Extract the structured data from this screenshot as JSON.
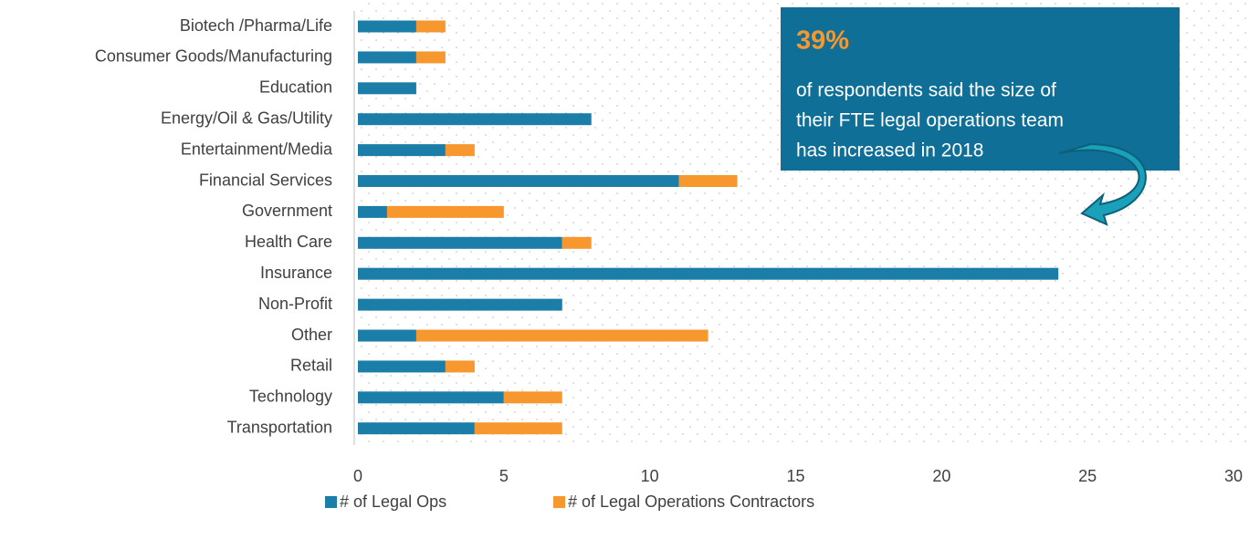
{
  "chart_data": {
    "type": "stacked_barh",
    "categories": [
      "Biotech /Pharma/Life",
      "Consumer Goods/Manufacturing",
      "Education",
      "Energy/Oil & Gas/Utility",
      "Entertainment/Media",
      "Financial Services",
      "Government",
      "Health Care",
      "Insurance",
      "Non-Profit",
      "Other",
      "Retail",
      "Technology",
      "Transportation"
    ],
    "series": [
      {
        "name": "# of Legal Ops",
        "color": "#1b7ea9",
        "values": [
          2,
          2,
          2,
          8,
          3,
          11,
          1,
          7,
          24,
          7,
          2,
          3,
          5,
          4
        ]
      },
      {
        "name": "# of Legal Operations Contractors",
        "color": "#f7982f",
        "values": [
          1,
          1,
          0,
          0,
          1,
          2,
          4,
          1,
          0,
          0,
          10,
          1,
          2,
          3
        ]
      }
    ],
    "xlim": [
      0,
      30
    ],
    "xticks": [
      0,
      5,
      10,
      15,
      20,
      25,
      30
    ],
    "legend": "bottom",
    "annotation": {
      "highlight": "39%",
      "lines": [
        "of respondents said the size of",
        "their FTE legal operations team",
        "has increased in 2018"
      ],
      "color": "#0f6f97",
      "highlight_color": "#f7982f"
    }
  }
}
